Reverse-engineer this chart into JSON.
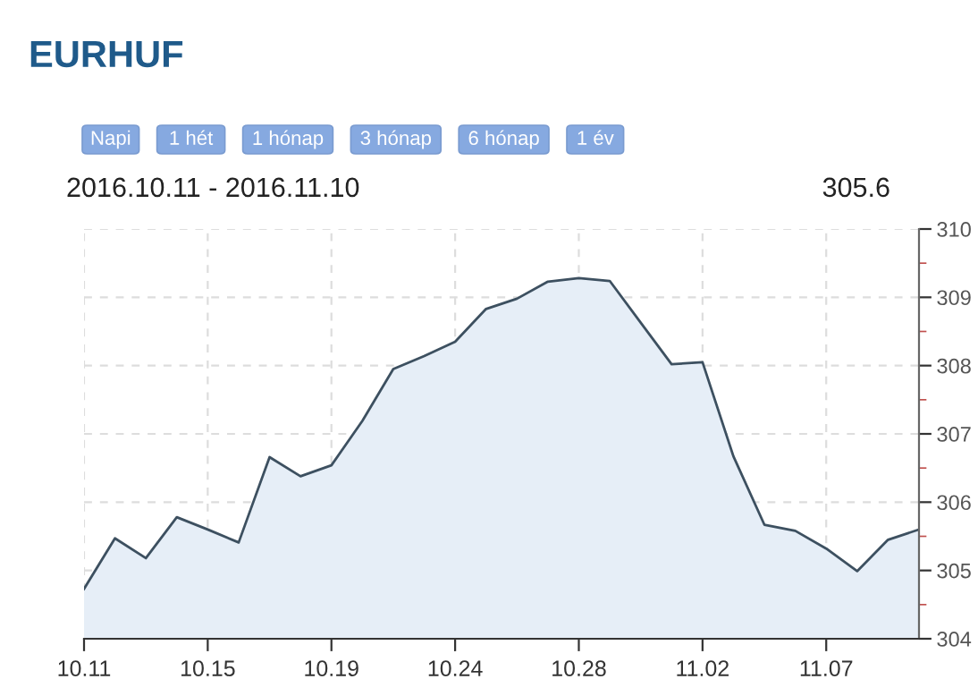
{
  "chart_data": {
    "type": "area",
    "title": "EURHUF",
    "subtitle": "2016.10.11 - 2016.11.10",
    "annotations": [
      "Napi",
      "1 hét",
      "1 hónap",
      "3 hónap",
      "6 hónap",
      "1 év",
      "305.6"
    ],
    "categories": [
      "10.11",
      null,
      null,
      null,
      "10.15",
      null,
      null,
      null,
      "10.19",
      null,
      null,
      null,
      "10.24",
      null,
      null,
      null,
      "10.28",
      null,
      null,
      null,
      "11.02",
      null,
      null,
      null,
      "11.07",
      null,
      null,
      null
    ],
    "series": [
      {
        "color": "#3d5060",
        "values": [
          304.73,
          305.47,
          305.18,
          305.78,
          305.6,
          305.41,
          306.66,
          306.38,
          306.54,
          307.19,
          307.95,
          308.14,
          308.35,
          308.83,
          308.98,
          309.23,
          309.28,
          309.24,
          308.63,
          308.02,
          308.05,
          306.67,
          305.67,
          305.58,
          305.32,
          304.99,
          305.45,
          305.6
        ]
      }
    ],
    "ylim": [
      304,
      310
    ],
    "yticks": [
      304,
      305,
      306,
      307,
      308,
      309,
      310
    ],
    "grid": true
  }
}
